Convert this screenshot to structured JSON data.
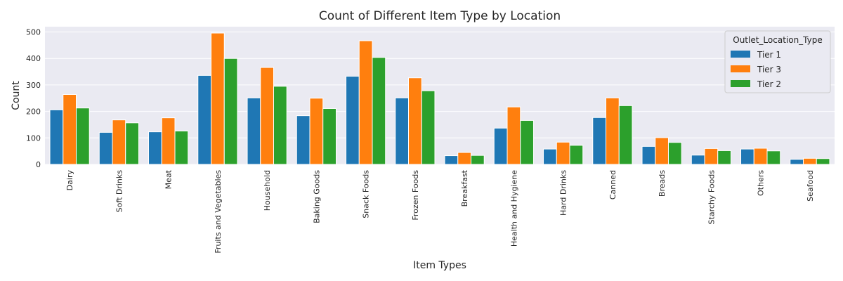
{
  "chart_data": {
    "type": "bar",
    "title": "Count of Different Item Type by Location",
    "xlabel": "Item Types",
    "ylabel": "Count",
    "ylim": [
      0,
      520
    ],
    "yticks": [
      0,
      100,
      200,
      300,
      400,
      500
    ],
    "grid": true,
    "legend_placement": "top-right",
    "legend_title": "Outlet_Location_Type",
    "categories": [
      "Dairy",
      "Soft Drinks",
      "Meat",
      "Fruits and Vegetables",
      "Household",
      "Baking Goods",
      "Snack Foods",
      "Frozen Foods",
      "Breakfast",
      "Health and Hygiene",
      "Hard Drinks",
      "Canned",
      "Breads",
      "Starchy Foods",
      "Others",
      "Seafood"
    ],
    "series": [
      {
        "name": "Tier 1",
        "color": "#1f77b4",
        "values": [
          206,
          121,
          123,
          336,
          251,
          184,
          333,
          251,
          33,
          137,
          58,
          177,
          68,
          35,
          58,
          19
        ]
      },
      {
        "name": "Tier 3",
        "color": "#ff7f0e",
        "values": [
          264,
          168,
          176,
          496,
          366,
          250,
          467,
          327,
          45,
          217,
          84,
          251,
          101,
          60,
          61,
          23
        ]
      },
      {
        "name": "Tier 2",
        "color": "#2ca02c",
        "values": [
          213,
          157,
          126,
          400,
          295,
          211,
          404,
          278,
          34,
          166,
          72,
          222,
          83,
          52,
          51,
          22
        ]
      }
    ]
  }
}
